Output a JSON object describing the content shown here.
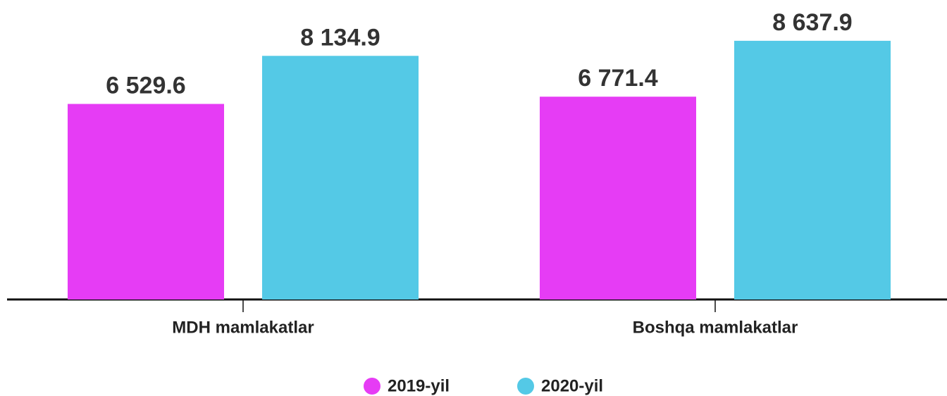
{
  "chart_data": {
    "type": "bar",
    "categories": [
      "MDH mamlakatlar",
      "Boshqa mamlakatlar"
    ],
    "series": [
      {
        "name": "2019-yil",
        "color": "#e63cf5",
        "values": [
          6529.6,
          6771.4
        ],
        "value_labels": [
          "6 529.6",
          "6 771.4"
        ]
      },
      {
        "name": "2020-yil",
        "color": "#54c9e6",
        "values": [
          8134.9,
          8637.9
        ],
        "value_labels": [
          "8 134.9",
          "8 637.9"
        ]
      }
    ],
    "ylim": [
      0,
      10000
    ],
    "legend": "bottom"
  }
}
